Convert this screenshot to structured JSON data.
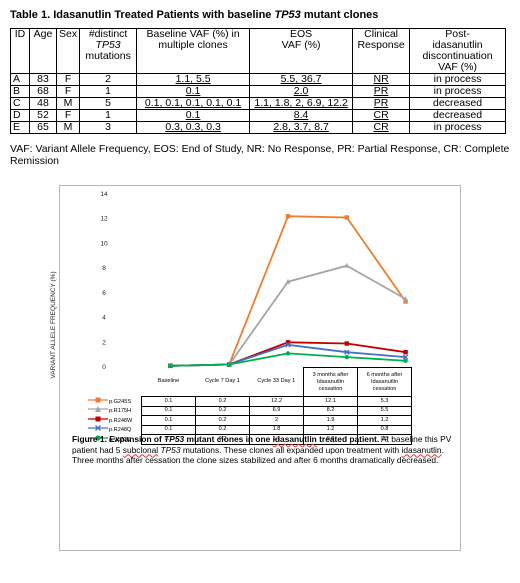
{
  "table1": {
    "title_prefix": "Table 1. Idasanutlin Treated Patients with baseline ",
    "title_italic": "TP53",
    "title_suffix": " mutant clones",
    "headers": {
      "id": "ID",
      "age": "Age",
      "sex": "Sex",
      "distinct_l1": "#distinct",
      "distinct_l2": "TP53",
      "distinct_l3": "mutations",
      "baseline_l1": "Baseline VAF (%) in",
      "baseline_l2": "multiple clones",
      "eos_l1": "EOS",
      "eos_l2": "VAF (%)",
      "clinical_l1": "Clinical",
      "clinical_l2": "Response",
      "post_l1": "Post-",
      "post_l2": "idasanutlin",
      "post_l3": "discontinuation",
      "post_l4": "VAF (%)"
    },
    "rows": [
      {
        "id": "A",
        "age": "83",
        "sex": "F",
        "n": "2",
        "baseline": "1.1, 5.5",
        "eos": "5.5, 36.7",
        "response": "NR",
        "post": "in process"
      },
      {
        "id": "B",
        "age": "68",
        "sex": "F",
        "n": "1",
        "baseline": "0.1",
        "eos": "2.0",
        "response": "PR",
        "post": "in process"
      },
      {
        "id": "C",
        "age": "48",
        "sex": "M",
        "n": "5",
        "baseline": "0.1, 0.1, 0.1, 0.1, 0.1",
        "eos": "1.1, 1.8, 2, 6.9, 12.2",
        "response": "PR",
        "post": "decreased"
      },
      {
        "id": "D",
        "age": "52",
        "sex": "F",
        "n": "1",
        "baseline": "0.1",
        "eos": "8.4",
        "response": "CR",
        "post": "decreased"
      },
      {
        "id": "E",
        "age": "65",
        "sex": "M",
        "n": "3",
        "baseline": "0.3, 0.3, 0.3",
        "eos": "2.8, 3.7, 8.7",
        "response": "CR",
        "post": "in process"
      }
    ],
    "footnote": "VAF: Variant Allele Frequency, EOS: End of Study, NR: No Response, PR: Partial Response, CR: Complete Remission"
  },
  "chart_data": {
    "type": "line",
    "title": "",
    "xlabel": "",
    "ylabel": "VARIANT ALLELE FREQUENCY (%)",
    "ylim": [
      0,
      14
    ],
    "yticks": [
      0,
      2,
      4,
      6,
      8,
      10,
      12,
      14
    ],
    "grid": false,
    "legend": "data-table-left",
    "categories": [
      "Baseline",
      "Cycle 7 Day 1",
      "Cycle 33 Day 1",
      "3 months after Idasanutlin cessation",
      "6 months after Idasanutlin cessation"
    ],
    "series": [
      {
        "name": "p.G245S",
        "color": "#ED7D31",
        "marker": "square",
        "values": [
          0.1,
          0.2,
          12.2,
          12.1,
          5.3
        ]
      },
      {
        "name": "p.R175H",
        "color": "#A5A5A5",
        "marker": "triangle",
        "values": [
          0.1,
          0.2,
          6.9,
          8.2,
          5.5
        ]
      },
      {
        "name": "p.R248W",
        "color": "#C00000",
        "marker": "square",
        "values": [
          0.1,
          0.2,
          2,
          1.9,
          1.2
        ]
      },
      {
        "name": "p.R248Q",
        "color": "#4472C4",
        "marker": "cross",
        "values": [
          0.1,
          0.2,
          1.8,
          1.2,
          0.8
        ]
      },
      {
        "name": "p.V172D",
        "color": "#00B050",
        "marker": "circle",
        "values": [
          0.1,
          0.2,
          1.1,
          0.8,
          0.5
        ]
      }
    ]
  },
  "data_table": {
    "cat_lines": [
      [
        "Baseline"
      ],
      [
        "Cycle 7 Day 1"
      ],
      [
        "Cycle 33 Day 1"
      ],
      [
        "3 months after",
        "Idasanutlin",
        "cessation"
      ],
      [
        "6 months after",
        "Idasanutlin",
        "cessation"
      ]
    ],
    "rows": [
      {
        "name": "p.G245S",
        "cells": [
          "0.1",
          "0.2",
          "12.2",
          "12.1",
          "5.3"
        ]
      },
      {
        "name": "p.R175H",
        "cells": [
          "0.1",
          "0.2",
          "6.9",
          "8.2",
          "5.5"
        ]
      },
      {
        "name": "p.R248W",
        "cells": [
          "0.1",
          "0.2",
          "2",
          "1.9",
          "1.2"
        ]
      },
      {
        "name": "p.R248Q",
        "cells": [
          "0.1",
          "0.2",
          "1.8",
          "1.2",
          "0.8"
        ]
      },
      {
        "name": "p.V172D",
        "cells": [
          "0.1",
          "0.2",
          "1.1",
          "0.8",
          "0.5"
        ]
      }
    ]
  },
  "figure": {
    "cap_bold1": "Figure 1. Expansion of ",
    "cap_bold_it": "TP53",
    "cap_bold2": " mutant clones in one ",
    "cap_bold_sq": "idasanutlin",
    "cap_bold3": " treated patient.",
    "cap_t1": " At baseline this PV patient had 5 ",
    "cap_sq1": "subclonal",
    "cap_t2": " ",
    "cap_it": "TP53",
    "cap_t3": " mutations. These clones all expanded upon treatment with ",
    "cap_sq2": "idasanutlin",
    "cap_t4": ". Three months after cessation the clone sizes stabilized and after 6 months dramatically decreased."
  }
}
